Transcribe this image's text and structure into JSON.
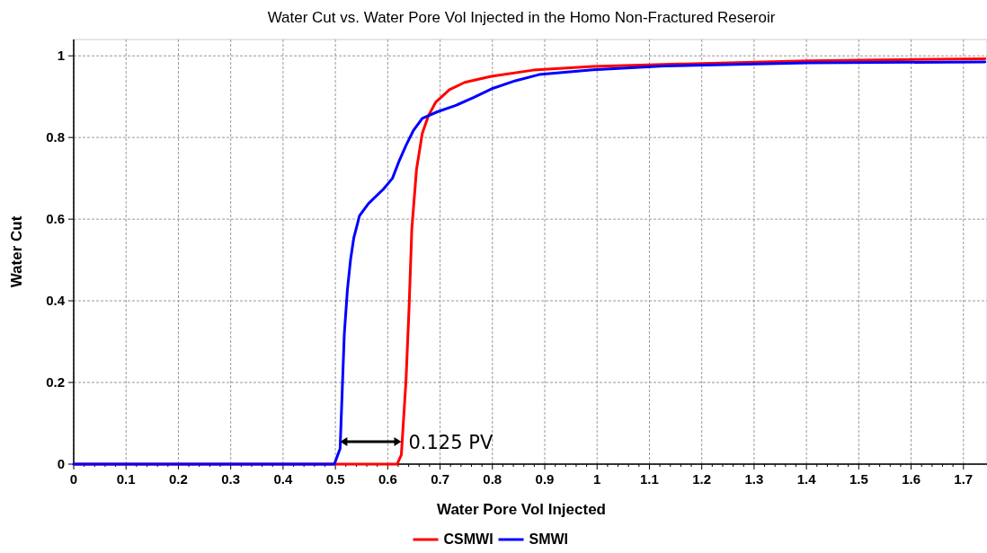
{
  "chart_data": {
    "type": "line",
    "title": "Water Cut vs. Water Pore Vol Injected in the Homo Non-Fractured Reseroir",
    "xlabel": "Water Pore Vol Injected",
    "ylabel": "Water Cut",
    "xlim": [
      0,
      1.745
    ],
    "ylim": [
      0,
      1.04
    ],
    "xticks": [
      0,
      0.1,
      0.2,
      0.3,
      0.4,
      0.5,
      0.6,
      0.7,
      0.8,
      0.9,
      1,
      1.1,
      1.2,
      1.3,
      1.4,
      1.5,
      1.6,
      1.7
    ],
    "yticks": [
      0,
      0.2,
      0.4,
      0.6,
      0.8,
      1
    ],
    "grid": true,
    "legend": "bottom",
    "marker": "none",
    "line_style": "solid",
    "annotations": [
      {
        "text": "0.125 PV",
        "x": 0.626,
        "y": 0.055
      }
    ],
    "series": [
      {
        "name": "CSMWI",
        "color": "#ff0000",
        "x": [
          0,
          0.618,
          0.626,
          0.635,
          0.641,
          0.646,
          0.655,
          0.666,
          0.678,
          0.692,
          0.718,
          0.747,
          0.798,
          0.878,
          0.992,
          1.129,
          1.404,
          1.741
        ],
        "values": [
          0,
          0,
          0.023,
          0.207,
          0.391,
          0.575,
          0.722,
          0.81,
          0.854,
          0.887,
          0.917,
          0.935,
          0.95,
          0.965,
          0.974,
          0.979,
          0.988,
          0.993
        ]
      },
      {
        "name": "SMWI",
        "color": "#0000ff",
        "x": [
          0,
          0.498,
          0.509,
          0.517,
          0.523,
          0.529,
          0.535,
          0.546,
          0.563,
          0.592,
          0.609,
          0.621,
          0.635,
          0.649,
          0.666,
          0.695,
          0.729,
          0.764,
          0.798,
          0.844,
          0.889,
          0.992,
          1.129,
          1.404,
          1.741
        ],
        "values": [
          0,
          0,
          0.038,
          0.318,
          0.428,
          0.501,
          0.553,
          0.608,
          0.638,
          0.674,
          0.7,
          0.74,
          0.781,
          0.817,
          0.847,
          0.863,
          0.878,
          0.898,
          0.919,
          0.939,
          0.954,
          0.966,
          0.975,
          0.983,
          0.985
        ]
      }
    ]
  }
}
